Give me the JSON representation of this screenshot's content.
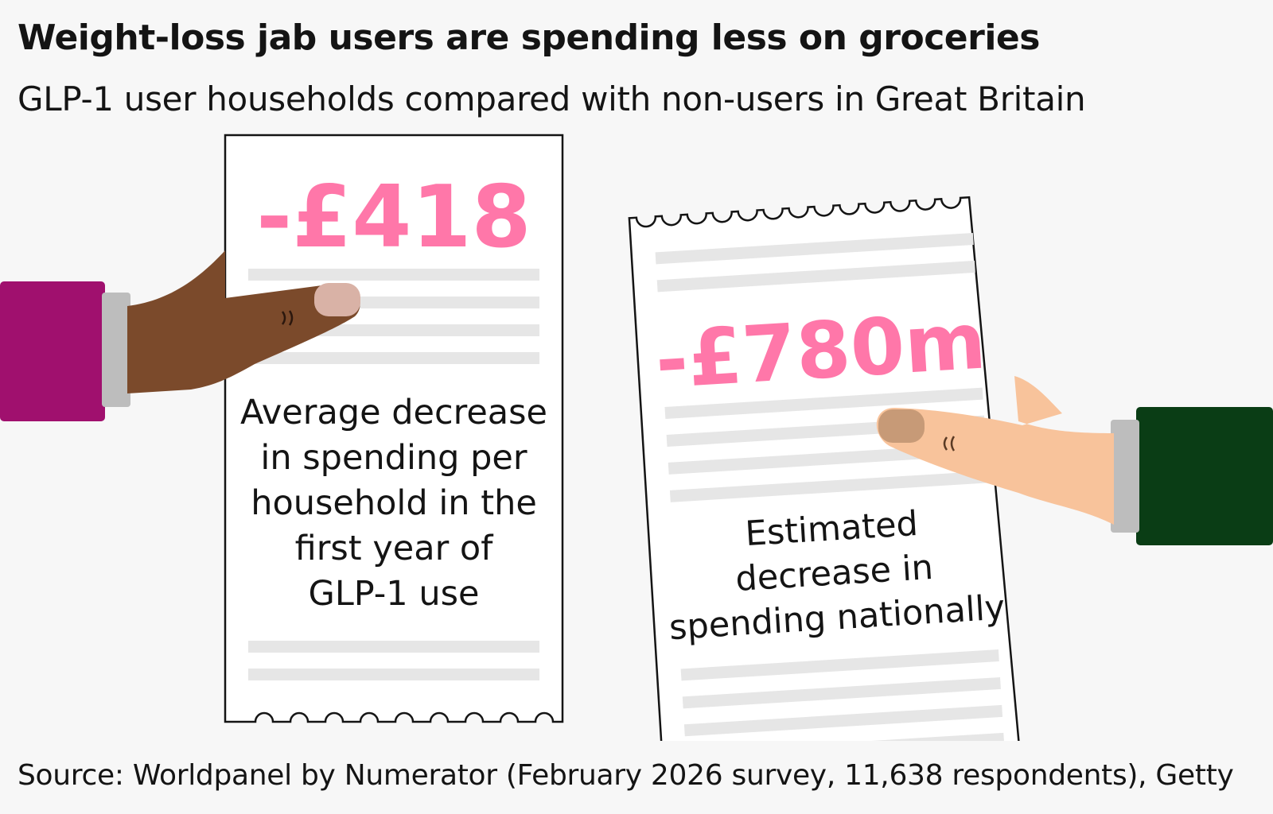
{
  "header": {
    "title": "Weight-loss jab users are spending less on groceries",
    "subtitle": "GLP-1 user households compared with non-users in Great Britain"
  },
  "receipts": {
    "left": {
      "figure": "-£418",
      "caption_lines": [
        "Average decrease",
        "in spending per",
        "household in the",
        "first year of",
        "GLP-1 use"
      ]
    },
    "right": {
      "figure": "-£780m",
      "caption_lines": [
        "Estimated",
        "decrease in",
        "spending nationally"
      ]
    }
  },
  "footer": {
    "source": "Source: Worldpanel by Numerator (February 2026 survey, 11,638 respondents), Getty"
  },
  "colors": {
    "accent_pink": "#ff77a9",
    "left_sleeve": "#a0106e",
    "right_sleeve": "#0a3d15",
    "left_skin": "#7b4a2b",
    "right_skin": "#f8c39b",
    "receipt_line": "#e6e6e6"
  }
}
